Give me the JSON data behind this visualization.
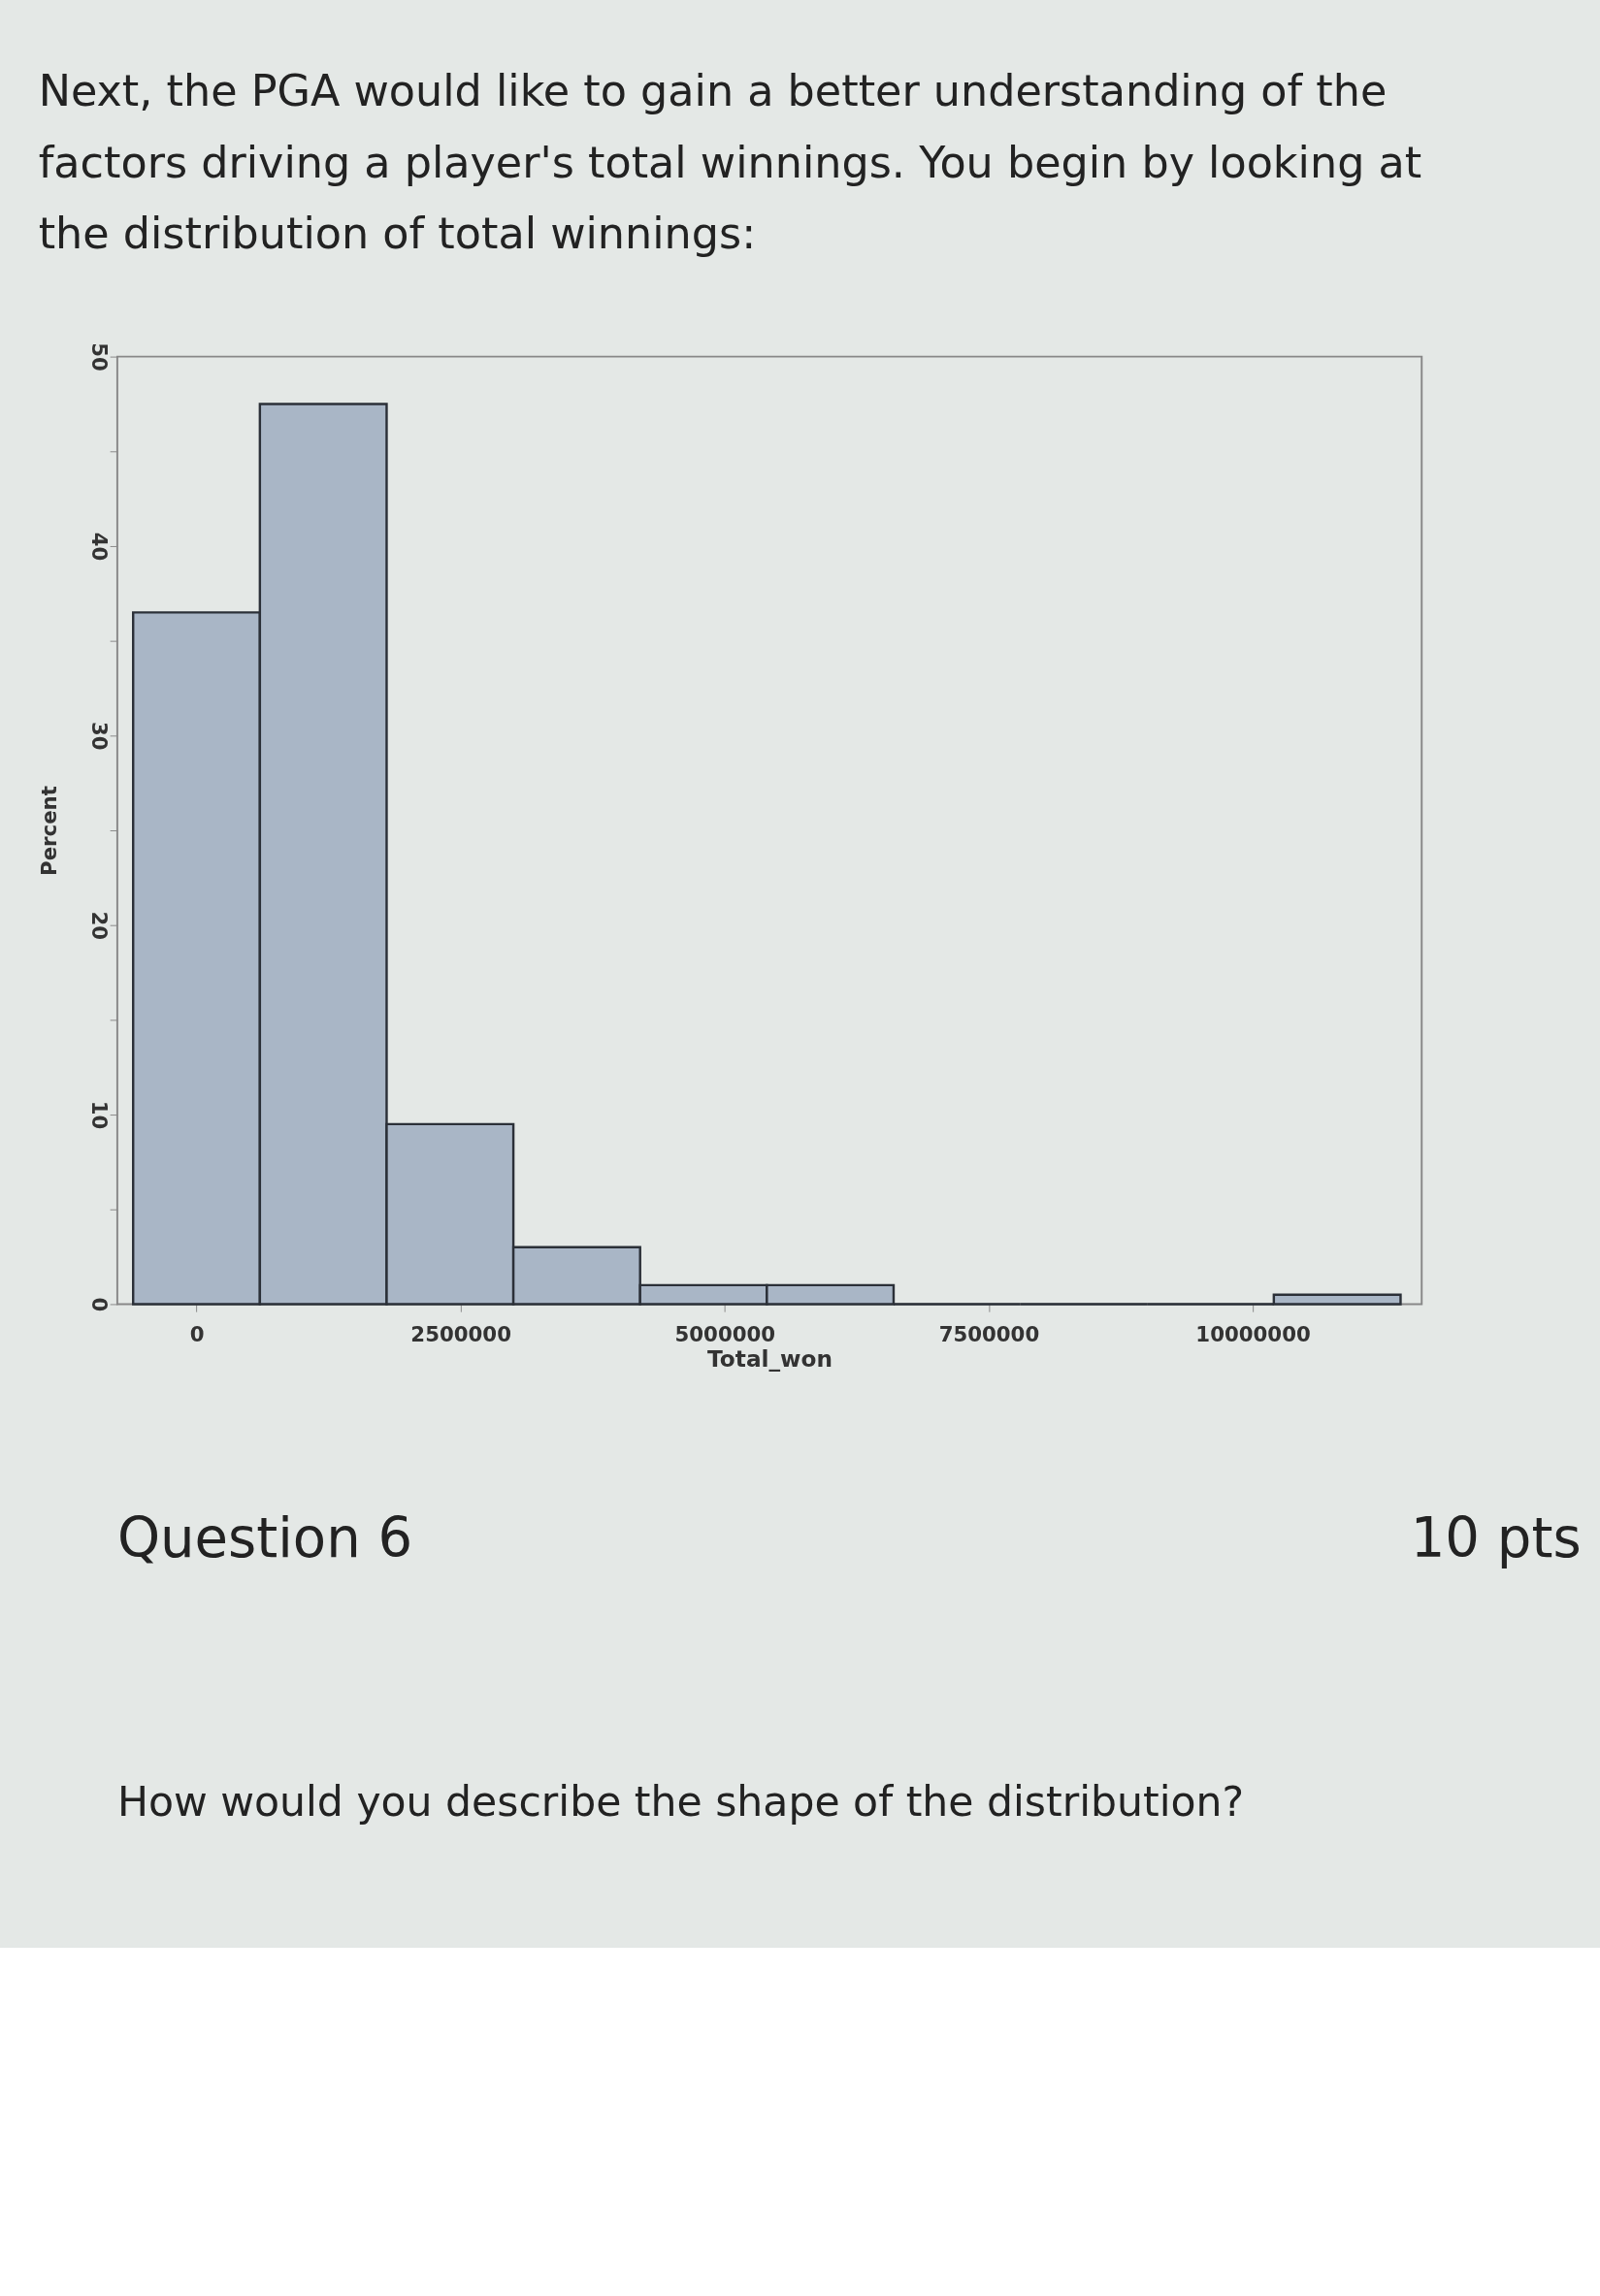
{
  "chart_data": {
    "type": "histogram",
    "title": [
      "Next, the PGA would like to gain a better understanding of the",
      "factors driving a player's total winnings. You begin by looking at",
      "the distribution of total winnings:"
    ],
    "xlabel": "Total_won",
    "ylabel": "Percent",
    "bins": [
      -600000,
      600000,
      1800000,
      3000000,
      4200000,
      5400000,
      6600000,
      7800000,
      9000000,
      10200000,
      11400000
    ],
    "values": [
      36.5,
      47.5,
      9.5,
      3,
      1,
      1,
      0,
      0,
      0,
      0.5
    ],
    "color": "#a9b6c6",
    "xlim": [
      -750000,
      11600000
    ],
    "xticks": [
      0,
      2500000,
      5000000,
      7500000,
      10000000
    ],
    "ylim": [
      0,
      50
    ],
    "yticks": [
      0,
      {
        "value": 5,
        "label": null
      },
      10,
      {
        "value": 15,
        "label": null
      },
      20,
      {
        "value": 25,
        "label": null
      },
      30,
      {
        "value": 35,
        "label": null
      },
      40,
      {
        "value": 45,
        "label": null
      },
      50
    ],
    "grid": false,
    "annotations": [
      "Question 6",
      "10 pts",
      "How would you describe the shape of the distribution?"
    ]
  }
}
